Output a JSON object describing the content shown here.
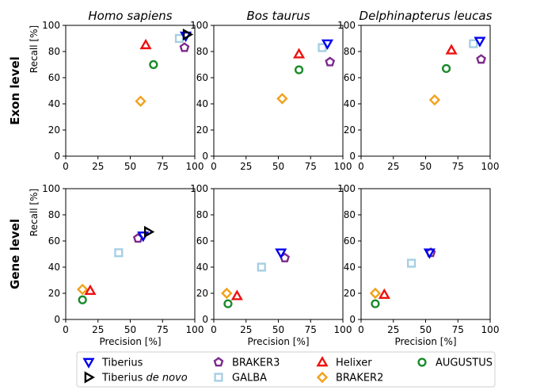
{
  "chart_data": [
    {
      "type": "scatter",
      "row": "Exon level",
      "title": "Homo sapiens",
      "xlabel": "",
      "ylabel": "Recall [%]",
      "xlim": [
        0,
        100
      ],
      "ylim": [
        0,
        100
      ],
      "points": {
        "Tiberius": [
          93,
          92
        ],
        "Tiberius de novo": [
          94,
          93
        ],
        "BRAKER3": [
          92,
          83
        ],
        "GALBA": [
          88,
          90
        ],
        "Helixer": [
          62,
          85
        ],
        "BRAKER2": [
          58,
          42
        ],
        "AUGUSTUS": [
          68,
          70
        ]
      }
    },
    {
      "type": "scatter",
      "row": "Exon level",
      "title": "Bos taurus",
      "xlabel": "",
      "ylabel": "",
      "xlim": [
        0,
        100
      ],
      "ylim": [
        0,
        100
      ],
      "points": {
        "Tiberius": [
          88,
          86
        ],
        "BRAKER3": [
          90,
          72
        ],
        "GALBA": [
          84,
          83
        ],
        "Helixer": [
          66,
          78
        ],
        "BRAKER2": [
          53,
          44
        ],
        "AUGUSTUS": [
          66,
          66
        ]
      }
    },
    {
      "type": "scatter",
      "row": "Exon level",
      "title": "Delphinapterus leucas",
      "xlabel": "",
      "ylabel": "",
      "xlim": [
        0,
        100
      ],
      "ylim": [
        0,
        100
      ],
      "points": {
        "Tiberius": [
          92,
          88
        ],
        "BRAKER3": [
          93,
          74
        ],
        "GALBA": [
          87,
          86
        ],
        "Helixer": [
          70,
          81
        ],
        "BRAKER2": [
          57,
          43
        ],
        "AUGUSTUS": [
          66,
          67
        ]
      }
    },
    {
      "type": "scatter",
      "row": "Gene level",
      "title": "",
      "xlabel": "Precision [%]",
      "ylabel": "Recall [%]",
      "xlim": [
        0,
        100
      ],
      "ylim": [
        0,
        100
      ],
      "points": {
        "Tiberius": [
          60,
          64
        ],
        "Tiberius de novo": [
          64,
          67
        ],
        "BRAKER3": [
          56,
          62
        ],
        "GALBA": [
          41,
          51
        ],
        "Helixer": [
          19,
          22
        ],
        "BRAKER2": [
          13,
          23
        ],
        "AUGUSTUS": [
          13,
          15
        ]
      }
    },
    {
      "type": "scatter",
      "row": "Gene level",
      "title": "",
      "xlabel": "Precision [%]",
      "ylabel": "",
      "xlim": [
        0,
        100
      ],
      "ylim": [
        0,
        100
      ],
      "points": {
        "Tiberius": [
          52,
          51
        ],
        "BRAKER3": [
          55,
          47
        ],
        "GALBA": [
          37,
          40
        ],
        "Helixer": [
          18,
          18
        ],
        "BRAKER2": [
          10,
          20
        ],
        "AUGUSTUS": [
          11,
          12
        ]
      }
    },
    {
      "type": "scatter",
      "row": "Gene level",
      "title": "",
      "xlabel": "Precision [%]",
      "ylabel": "",
      "xlim": [
        0,
        100
      ],
      "ylim": [
        0,
        100
      ],
      "points": {
        "Tiberius": [
          53,
          51
        ],
        "BRAKER3": [
          54,
          51
        ],
        "GALBA": [
          39,
          43
        ],
        "Helixer": [
          18,
          19
        ],
        "BRAKER2": [
          11,
          20
        ],
        "AUGUSTUS": [
          11,
          12
        ]
      }
    }
  ],
  "row_labels": [
    "Exon level",
    "Gene level"
  ],
  "ticks": [
    0,
    25,
    50,
    75,
    100
  ],
  "yticks": [
    0,
    20,
    40,
    60,
    80,
    100
  ],
  "legend": [
    {
      "name": "Tiberius",
      "label": "Tiberius",
      "label_italic": "",
      "marker": "tri-down",
      "color": "#0000ee"
    },
    {
      "name": "Tiberius de novo",
      "label": "Tiberius ",
      "label_italic": "de novo",
      "marker": "tri-right",
      "color": "#000000"
    },
    {
      "name": "BRAKER3",
      "label": "BRAKER3",
      "label_italic": "",
      "marker": "pentagon",
      "color": "#7b2a8c"
    },
    {
      "name": "GALBA",
      "label": "GALBA",
      "label_italic": "",
      "marker": "square",
      "color": "#a6cfe3"
    },
    {
      "name": "Helixer",
      "label": "Helixer",
      "label_italic": "",
      "marker": "tri-up",
      "color": "#ee1111"
    },
    {
      "name": "BRAKER2",
      "label": "BRAKER2",
      "label_italic": "",
      "marker": "diamond",
      "color": "#f2a11a"
    },
    {
      "name": "AUGUSTUS",
      "label": "AUGUSTUS",
      "label_italic": "",
      "marker": "circle",
      "color": "#1a8a2a"
    }
  ]
}
